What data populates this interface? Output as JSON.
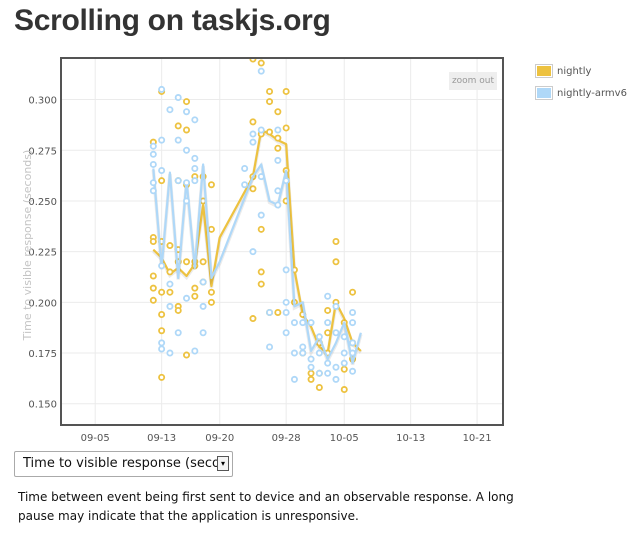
{
  "page": {
    "title": "Scrolling on taskjs.org"
  },
  "controls": {
    "zoom_out_label": "zoom out",
    "metric_select_value": "Time to visible response (seconds)",
    "dropdown_arrow": "▾"
  },
  "description": "Time between event being first sent to device and an observable response. A long pause may indicate that the application is unresponsive.",
  "colors": {
    "nightly": "#edc240",
    "nightly-armv6": "#afd8f8"
  },
  "chart_data": {
    "type": "line",
    "ylabel": "Time to visible response (seconds)",
    "xlabel": "",
    "ylim": [
      0.14,
      0.32
    ],
    "xlim": [
      "2012-09-01",
      "2012-10-24"
    ],
    "x_ticks": [
      "09-05",
      "09-13",
      "09-20",
      "09-28",
      "10-05",
      "10-13",
      "10-21"
    ],
    "y_ticks": [
      "0.150",
      "0.175",
      "0.200",
      "0.225",
      "0.250",
      "0.275",
      "0.300"
    ],
    "legend": {
      "position": "outside-right",
      "entries": [
        "nightly",
        "nightly-armv6"
      ]
    },
    "grid": true,
    "series": [
      {
        "name": "nightly",
        "color": "#edc240",
        "line": [
          [
            "2012-09-12",
            0.226
          ],
          [
            "2012-09-13",
            0.222
          ],
          [
            "2012-09-14",
            0.214
          ],
          [
            "2012-09-15",
            0.217
          ],
          [
            "2012-09-16",
            0.213
          ],
          [
            "2012-09-17",
            0.219
          ],
          [
            "2012-09-18",
            0.248
          ],
          [
            "2012-09-19",
            0.208
          ],
          [
            "2012-09-20",
            0.232
          ],
          [
            "2012-09-24",
            0.262
          ],
          [
            "2012-09-25",
            0.285
          ],
          [
            "2012-09-26",
            0.283
          ],
          [
            "2012-09-27",
            0.28
          ],
          [
            "2012-09-28",
            0.278
          ],
          [
            "2012-09-29",
            0.216
          ],
          [
            "2012-09-30",
            0.194
          ],
          [
            "2012-10-01",
            0.188
          ],
          [
            "2012-10-02",
            0.178
          ],
          [
            "2012-10-03",
            0.175
          ],
          [
            "2012-10-04",
            0.2
          ],
          [
            "2012-10-05",
            0.192
          ],
          [
            "2012-10-06",
            0.18
          ],
          [
            "2012-10-07",
            0.176
          ]
        ],
        "points": [
          [
            "2012-09-12",
            0.279
          ],
          [
            "2012-09-12",
            0.232
          ],
          [
            "2012-09-12",
            0.23
          ],
          [
            "2012-09-12",
            0.213
          ],
          [
            "2012-09-12",
            0.207
          ],
          [
            "2012-09-12",
            0.201
          ],
          [
            "2012-09-13",
            0.304
          ],
          [
            "2012-09-13",
            0.26
          ],
          [
            "2012-09-13",
            0.23
          ],
          [
            "2012-09-13",
            0.205
          ],
          [
            "2012-09-13",
            0.194
          ],
          [
            "2012-09-13",
            0.186
          ],
          [
            "2012-09-13",
            0.163
          ],
          [
            "2012-09-14",
            0.228
          ],
          [
            "2012-09-14",
            0.215
          ],
          [
            "2012-09-14",
            0.205
          ],
          [
            "2012-09-15",
            0.287
          ],
          [
            "2012-09-15",
            0.26
          ],
          [
            "2012-09-15",
            0.226
          ],
          [
            "2012-09-15",
            0.22
          ],
          [
            "2012-09-15",
            0.198
          ],
          [
            "2012-09-15",
            0.196
          ],
          [
            "2012-09-16",
            0.299
          ],
          [
            "2012-09-16",
            0.285
          ],
          [
            "2012-09-16",
            0.258
          ],
          [
            "2012-09-16",
            0.22
          ],
          [
            "2012-09-16",
            0.174
          ],
          [
            "2012-09-17",
            0.262
          ],
          [
            "2012-09-17",
            0.22
          ],
          [
            "2012-09-17",
            0.218
          ],
          [
            "2012-09-17",
            0.207
          ],
          [
            "2012-09-17",
            0.203
          ],
          [
            "2012-09-18",
            0.262
          ],
          [
            "2012-09-18",
            0.25
          ],
          [
            "2012-09-18",
            0.22
          ],
          [
            "2012-09-18",
            0.21
          ],
          [
            "2012-09-19",
            0.258
          ],
          [
            "2012-09-19",
            0.236
          ],
          [
            "2012-09-19",
            0.205
          ],
          [
            "2012-09-19",
            0.2
          ],
          [
            "2012-09-24",
            0.32
          ],
          [
            "2012-09-24",
            0.289
          ],
          [
            "2012-09-24",
            0.262
          ],
          [
            "2012-09-24",
            0.256
          ],
          [
            "2012-09-24",
            0.192
          ],
          [
            "2012-09-25",
            0.318
          ],
          [
            "2012-09-25",
            0.283
          ],
          [
            "2012-09-25",
            0.236
          ],
          [
            "2012-09-25",
            0.215
          ],
          [
            "2012-09-25",
            0.209
          ],
          [
            "2012-09-26",
            0.304
          ],
          [
            "2012-09-26",
            0.299
          ],
          [
            "2012-09-26",
            0.284
          ],
          [
            "2012-09-26",
            0.195
          ],
          [
            "2012-09-27",
            0.294
          ],
          [
            "2012-09-27",
            0.281
          ],
          [
            "2012-09-27",
            0.276
          ],
          [
            "2012-09-27",
            0.195
          ],
          [
            "2012-09-28",
            0.304
          ],
          [
            "2012-09-28",
            0.286
          ],
          [
            "2012-09-28",
            0.265
          ],
          [
            "2012-09-28",
            0.25
          ],
          [
            "2012-09-29",
            0.216
          ],
          [
            "2012-09-29",
            0.2
          ],
          [
            "2012-09-30",
            0.194
          ],
          [
            "2012-09-30",
            0.175
          ],
          [
            "2012-10-01",
            0.165
          ],
          [
            "2012-10-01",
            0.162
          ],
          [
            "2012-10-02",
            0.18
          ],
          [
            "2012-10-02",
            0.158
          ],
          [
            "2012-10-02",
            0.165
          ],
          [
            "2012-10-03",
            0.196
          ],
          [
            "2012-10-03",
            0.185
          ],
          [
            "2012-10-03",
            0.175
          ],
          [
            "2012-10-04",
            0.23
          ],
          [
            "2012-10-04",
            0.22
          ],
          [
            "2012-10-04",
            0.2
          ],
          [
            "2012-10-05",
            0.19
          ],
          [
            "2012-10-05",
            0.167
          ],
          [
            "2012-10-05",
            0.157
          ],
          [
            "2012-10-06",
            0.205
          ],
          [
            "2012-10-06",
            0.18
          ],
          [
            "2012-10-06",
            0.172
          ]
        ]
      },
      {
        "name": "nightly-armv6",
        "color": "#afd8f8",
        "line": [
          [
            "2012-09-12",
            0.266
          ],
          [
            "2012-09-13",
            0.217
          ],
          [
            "2012-09-14",
            0.264
          ],
          [
            "2012-09-15",
            0.212
          ],
          [
            "2012-09-16",
            0.26
          ],
          [
            "2012-09-17",
            0.217
          ],
          [
            "2012-09-18",
            0.268
          ],
          [
            "2012-09-19",
            0.212
          ],
          [
            "2012-09-20",
            0.22
          ],
          [
            "2012-09-24",
            0.262
          ],
          [
            "2012-09-25",
            0.268
          ],
          [
            "2012-09-26",
            0.25
          ],
          [
            "2012-09-27",
            0.248
          ],
          [
            "2012-09-28",
            0.265
          ],
          [
            "2012-09-29",
            0.198
          ],
          [
            "2012-09-30",
            0.2
          ],
          [
            "2012-10-01",
            0.176
          ],
          [
            "2012-10-02",
            0.183
          ],
          [
            "2012-10-03",
            0.172
          ],
          [
            "2012-10-04",
            0.18
          ],
          [
            "2012-10-05",
            0.19
          ],
          [
            "2012-10-06",
            0.17
          ],
          [
            "2012-10-07",
            0.185
          ]
        ],
        "points": [
          [
            "2012-09-12",
            0.277
          ],
          [
            "2012-09-12",
            0.273
          ],
          [
            "2012-09-12",
            0.268
          ],
          [
            "2012-09-12",
            0.259
          ],
          [
            "2012-09-12",
            0.255
          ],
          [
            "2012-09-13",
            0.305
          ],
          [
            "2012-09-13",
            0.28
          ],
          [
            "2012-09-13",
            0.265
          ],
          [
            "2012-09-13",
            0.218
          ],
          [
            "2012-09-13",
            0.18
          ],
          [
            "2012-09-13",
            0.177
          ],
          [
            "2012-09-14",
            0.295
          ],
          [
            "2012-09-14",
            0.209
          ],
          [
            "2012-09-14",
            0.198
          ],
          [
            "2012-09-14",
            0.175
          ],
          [
            "2012-09-15",
            0.301
          ],
          [
            "2012-09-15",
            0.28
          ],
          [
            "2012-09-15",
            0.26
          ],
          [
            "2012-09-15",
            0.185
          ],
          [
            "2012-09-16",
            0.294
          ],
          [
            "2012-09-16",
            0.275
          ],
          [
            "2012-09-16",
            0.259
          ],
          [
            "2012-09-16",
            0.25
          ],
          [
            "2012-09-16",
            0.202
          ],
          [
            "2012-09-17",
            0.29
          ],
          [
            "2012-09-17",
            0.271
          ],
          [
            "2012-09-17",
            0.266
          ],
          [
            "2012-09-17",
            0.26
          ],
          [
            "2012-09-17",
            0.176
          ],
          [
            "2012-09-18",
            0.21
          ],
          [
            "2012-09-18",
            0.198
          ],
          [
            "2012-09-18",
            0.185
          ],
          [
            "2012-09-23",
            0.266
          ],
          [
            "2012-09-23",
            0.258
          ],
          [
            "2012-09-24",
            0.283
          ],
          [
            "2012-09-24",
            0.279
          ],
          [
            "2012-09-24",
            0.225
          ],
          [
            "2012-09-25",
            0.314
          ],
          [
            "2012-09-25",
            0.285
          ],
          [
            "2012-09-25",
            0.262
          ],
          [
            "2012-09-25",
            0.243
          ],
          [
            "2012-09-26",
            0.195
          ],
          [
            "2012-09-26",
            0.178
          ],
          [
            "2012-09-27",
            0.285
          ],
          [
            "2012-09-27",
            0.27
          ],
          [
            "2012-09-27",
            0.255
          ],
          [
            "2012-09-27",
            0.248
          ],
          [
            "2012-09-28",
            0.26
          ],
          [
            "2012-09-28",
            0.216
          ],
          [
            "2012-09-28",
            0.2
          ],
          [
            "2012-09-28",
            0.195
          ],
          [
            "2012-09-28",
            0.185
          ],
          [
            "2012-09-29",
            0.19
          ],
          [
            "2012-09-29",
            0.175
          ],
          [
            "2012-09-29",
            0.162
          ],
          [
            "2012-09-30",
            0.19
          ],
          [
            "2012-09-30",
            0.178
          ],
          [
            "2012-09-30",
            0.175
          ],
          [
            "2012-10-01",
            0.19
          ],
          [
            "2012-10-01",
            0.172
          ],
          [
            "2012-10-01",
            0.168
          ],
          [
            "2012-10-02",
            0.183
          ],
          [
            "2012-10-02",
            0.175
          ],
          [
            "2012-10-02",
            0.165
          ],
          [
            "2012-10-03",
            0.203
          ],
          [
            "2012-10-03",
            0.19
          ],
          [
            "2012-10-03",
            0.17
          ],
          [
            "2012-10-03",
            0.165
          ],
          [
            "2012-10-04",
            0.198
          ],
          [
            "2012-10-04",
            0.185
          ],
          [
            "2012-10-04",
            0.168
          ],
          [
            "2012-10-04",
            0.162
          ],
          [
            "2012-10-05",
            0.183
          ],
          [
            "2012-10-05",
            0.175
          ],
          [
            "2012-10-05",
            0.17
          ],
          [
            "2012-10-06",
            0.195
          ],
          [
            "2012-10-06",
            0.19
          ],
          [
            "2012-10-06",
            0.18
          ],
          [
            "2012-10-06",
            0.175
          ],
          [
            "2012-10-06",
            0.166
          ]
        ]
      }
    ]
  }
}
